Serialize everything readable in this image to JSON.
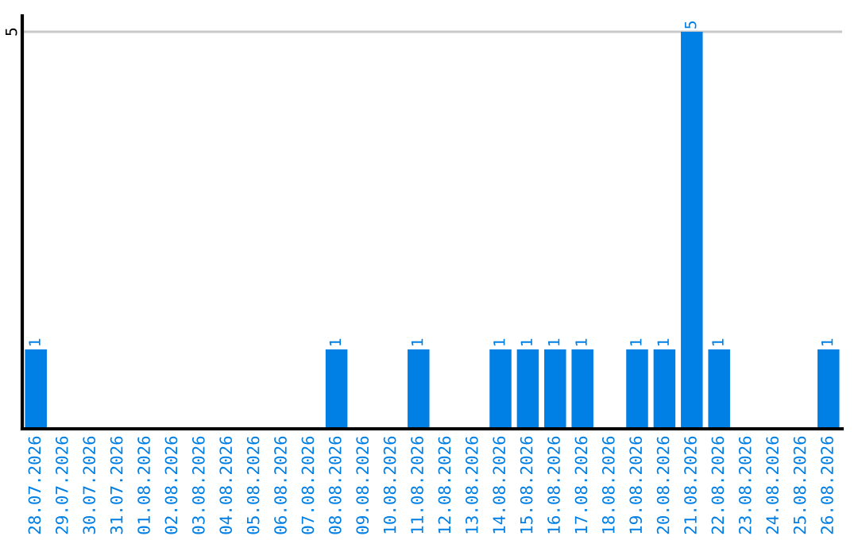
{
  "chart_data": {
    "type": "bar",
    "categories": [
      "28.07.2026",
      "29.07.2026",
      "30.07.2026",
      "31.07.2026",
      "01.08.2026",
      "02.08.2026",
      "03.08.2026",
      "04.08.2026",
      "05.08.2026",
      "06.08.2026",
      "07.08.2026",
      "08.08.2026",
      "09.08.2026",
      "10.08.2026",
      "11.08.2026",
      "12.08.2026",
      "13.08.2026",
      "14.08.2026",
      "15.08.2026",
      "16.08.2026",
      "17.08.2026",
      "18.08.2026",
      "19.08.2026",
      "20.08.2026",
      "21.08.2026",
      "22.08.2026",
      "23.08.2026",
      "24.08.2026",
      "25.08.2026",
      "26.08.2026"
    ],
    "values": [
      1,
      0,
      0,
      0,
      0,
      0,
      0,
      0,
      0,
      0,
      0,
      1,
      0,
      0,
      1,
      0,
      0,
      1,
      1,
      1,
      1,
      0,
      1,
      1,
      5,
      1,
      0,
      0,
      0,
      1
    ],
    "value_labels": [
      "1",
      null,
      null,
      null,
      null,
      null,
      null,
      null,
      null,
      null,
      null,
      "1",
      null,
      null,
      "1",
      null,
      null,
      "1",
      "1",
      "1",
      "1",
      null,
      "1",
      "1",
      "5",
      "1",
      null,
      null,
      null,
      "1"
    ],
    "color": "#007fe5",
    "ylim": [
      0,
      5.2
    ],
    "yticks": [
      5
    ],
    "grid": "y",
    "legend": false
  }
}
